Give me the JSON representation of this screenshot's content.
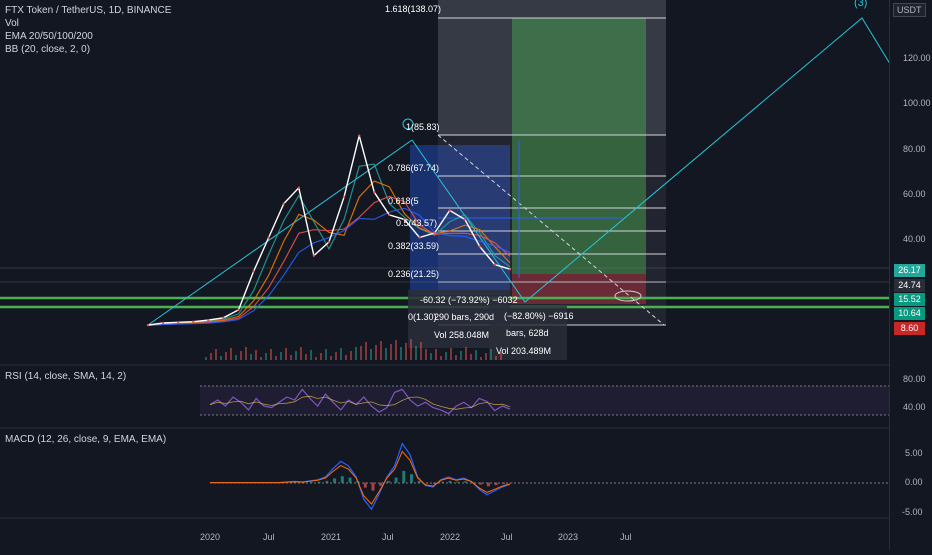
{
  "legend": {
    "symbol": "FTX Token / TetherUS, 1D, BINANCE",
    "vol": "Vol",
    "ema": "EMA 20/50/100/200",
    "bb": "BB (20, close, 2, 0)"
  },
  "rsi_label": "RSI (14, close, SMA, 14, 2)",
  "macd_label": "MACD (12, 26, close, 9, EMA, EMA)",
  "axis_unit": "USDT",
  "wave_label": "(3)",
  "price_tags": [
    {
      "text": "26.17",
      "color": "#26a69a"
    },
    {
      "text": "24.74",
      "color": "#2a2e39"
    },
    {
      "text": "15.52",
      "color": "#089981"
    },
    {
      "text": "10.64",
      "color": "#089981"
    },
    {
      "text": "8.60",
      "color": "#c62828"
    }
  ],
  "annotations": {
    "fib_1618": "1.618(138.07)",
    "fib_1": "1(85.83)",
    "fib_0786": "0.786(67.74)",
    "fib_0618": "0.618(5",
    "fib_05": "0.5(43.57)",
    "fib_0382": "0.382(33.59)",
    "fib_0236": "0.236(21.25)",
    "fib_0": "0(1.30)",
    "measure1_change": "-60.32 (−73.92%) −6032",
    "measure1_bars": "290 bars, 290d",
    "measure1_vol": "Vol 258.048M",
    "measure2_change": "(−82.80%) −6916",
    "measure2_bars": "bars, 628d",
    "measure2_vol": "Vol 203.489M"
  },
  "chart_data": [
    {
      "type": "line",
      "title": "FTX Token / TetherUS, 1D, BINANCE",
      "x_tick_labels": [
        "2020",
        "Jul",
        "2021",
        "Jul",
        "2022",
        "Jul",
        "2023",
        "Jul"
      ],
      "y_tick_labels": [
        "120.00",
        "100.00",
        "80.00",
        "60.00",
        "40.00",
        "20.00"
      ],
      "ylim": [
        0,
        145
      ],
      "series": [
        {
          "name": "FTX Token / TetherUS",
          "x": [
            "2019-07",
            "2019-10",
            "2020-01",
            "2020-04",
            "2020-07",
            "2020-10",
            "2021-01",
            "2021-02",
            "2021-03",
            "2021-04",
            "2021-05",
            "2021-06",
            "2021-07",
            "2021-08",
            "2021-09",
            "2021-10",
            "2021-11",
            "2021-12",
            "2022-01",
            "2022-02",
            "2022-03",
            "2022-04",
            "2022-05",
            "2022-06",
            "2022-07"
          ],
          "values": [
            1.3,
            2.2,
            2.5,
            2.8,
            3.5,
            4.5,
            8,
            25,
            40,
            55,
            62,
            32,
            38,
            58,
            85,
            60,
            50,
            48,
            40,
            42,
            52,
            48,
            36,
            28,
            26
          ]
        }
      ],
      "fib_levels": [
        {
          "ratio": 1.618,
          "price": 138.07
        },
        {
          "ratio": 1,
          "price": 85.83
        },
        {
          "ratio": 0.786,
          "price": 67.74
        },
        {
          "ratio": 0.618,
          "price": 53.4
        },
        {
          "ratio": 0.5,
          "price": 43.57
        },
        {
          "ratio": 0.382,
          "price": 33.59
        },
        {
          "ratio": 0.236,
          "price": 21.25
        },
        {
          "ratio": 0,
          "price": 1.3
        }
      ],
      "horizontal_levels": [
        15.52,
        10.64
      ],
      "grid": true
    },
    {
      "type": "line",
      "title": "RSI (14, close, SMA, 14, 2)",
      "y_tick_labels": [
        "80.00",
        "40.00"
      ],
      "ylim": [
        25,
        95
      ],
      "values": [
        52,
        58,
        50,
        62,
        55,
        45,
        60,
        50,
        48,
        55,
        62,
        58,
        72,
        60,
        50,
        66,
        55,
        45,
        58,
        52,
        62,
        50,
        42,
        48,
        68,
        72,
        58,
        50,
        55,
        48,
        45,
        40,
        50,
        55,
        48,
        60,
        56,
        44,
        50,
        46
      ]
    },
    {
      "type": "line",
      "title": "MACD (12, 26, close, 9, EMA, EMA)",
      "y_tick_labels": [
        "5.00",
        "0.00",
        "-5.00"
      ],
      "ylim": [
        -6,
        8
      ],
      "values": [
        0,
        0,
        0,
        0,
        0,
        0,
        0,
        0,
        0,
        0,
        0.1,
        0.2,
        0.1,
        0.3,
        0.5,
        1,
        2.5,
        3.8,
        3,
        1,
        -3,
        -4.8,
        -2,
        1,
        3,
        7,
        5,
        1,
        -0.5,
        -0.8,
        0.5,
        1,
        0.5,
        0.8,
        0.2,
        -1.2,
        -2.2,
        -1.5,
        -0.8,
        -0.3
      ]
    }
  ]
}
